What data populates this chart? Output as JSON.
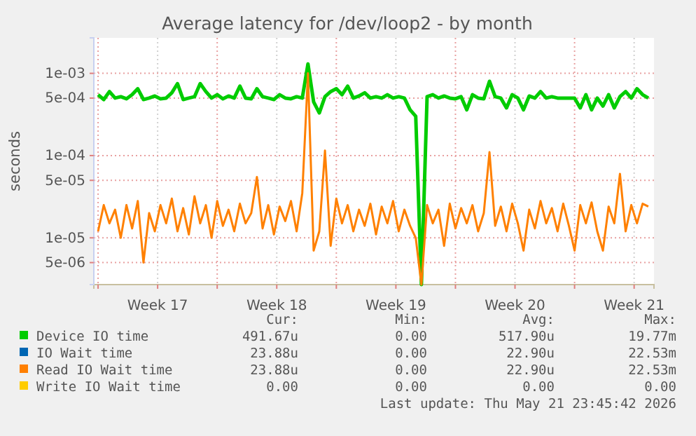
{
  "chart_data": {
    "type": "line",
    "title": "Average latency for /dev/loop2 - by month",
    "ylabel": "seconds",
    "log": "y",
    "grid": true,
    "legend": "bottom",
    "line_style": "solid",
    "xlim": [
      "2026-04-19T18:00",
      "2026-05-22T16:00"
    ],
    "ylim": [
      2.7e-06,
      0.0027
    ],
    "yticks": [
      {
        "value": 5e-06,
        "label": "5e-06"
      },
      {
        "value": 1e-05,
        "label": "1e-05"
      },
      {
        "value": 5e-05,
        "label": "5e-05"
      },
      {
        "value": 0.0001,
        "label": "1e-04"
      },
      {
        "value": 0.0005,
        "label": "5e-04"
      },
      {
        "value": 0.001,
        "label": "1e-03"
      }
    ],
    "xticks": [
      {
        "value": "2026-04-20",
        "label": null
      },
      {
        "value": "2026-04-23T12:00",
        "label": "Week 17"
      },
      {
        "value": "2026-04-27",
        "label": null
      },
      {
        "value": "2026-04-30T12:00",
        "label": "Week 18"
      },
      {
        "value": "2026-05-04",
        "label": null
      },
      {
        "value": "2026-05-07T12:00",
        "label": "Week 19"
      },
      {
        "value": "2026-05-11",
        "label": null
      },
      {
        "value": "2026-05-14T12:00",
        "label": "Week 20"
      },
      {
        "value": "2026-05-18",
        "label": null
      },
      {
        "value": "2026-05-21T12:00",
        "label": "Week 21"
      }
    ],
    "x": [
      "2026-04-20T00:00",
      "2026-04-20T08:00",
      "2026-04-20T16:00",
      "2026-04-21T00:00",
      "2026-04-21T08:00",
      "2026-04-21T16:00",
      "2026-04-22T00:00",
      "2026-04-22T08:00",
      "2026-04-22T16:00",
      "2026-04-23T00:00",
      "2026-04-23T08:00",
      "2026-04-23T16:00",
      "2026-04-24T00:00",
      "2026-04-24T08:00",
      "2026-04-24T16:00",
      "2026-04-25T00:00",
      "2026-04-25T08:00",
      "2026-04-25T16:00",
      "2026-04-26T00:00",
      "2026-04-26T08:00",
      "2026-04-26T16:00",
      "2026-04-27T00:00",
      "2026-04-27T08:00",
      "2026-04-27T16:00",
      "2026-04-28T00:00",
      "2026-04-28T08:00",
      "2026-04-28T16:00",
      "2026-04-29T00:00",
      "2026-04-29T08:00",
      "2026-04-29T16:00",
      "2026-04-30T00:00",
      "2026-04-30T08:00",
      "2026-04-30T16:00",
      "2026-05-01T00:00",
      "2026-05-01T08:00",
      "2026-05-01T16:00",
      "2026-05-02T00:00",
      "2026-05-02T08:00",
      "2026-05-02T16:00",
      "2026-05-03T00:00",
      "2026-05-03T08:00",
      "2026-05-03T16:00",
      "2026-05-04T00:00",
      "2026-05-04T08:00",
      "2026-05-04T16:00",
      "2026-05-05T00:00",
      "2026-05-05T08:00",
      "2026-05-05T16:00",
      "2026-05-06T00:00",
      "2026-05-06T08:00",
      "2026-05-06T16:00",
      "2026-05-07T00:00",
      "2026-05-07T08:00",
      "2026-05-07T16:00",
      "2026-05-08T00:00",
      "2026-05-08T08:00",
      "2026-05-08T16:00",
      "2026-05-09T00:00",
      "2026-05-09T08:00",
      "2026-05-09T16:00",
      "2026-05-10T00:00",
      "2026-05-10T08:00",
      "2026-05-10T16:00",
      "2026-05-11T00:00",
      "2026-05-11T08:00",
      "2026-05-11T16:00",
      "2026-05-12T00:00",
      "2026-05-12T08:00",
      "2026-05-12T16:00",
      "2026-05-13T00:00",
      "2026-05-13T08:00",
      "2026-05-13T16:00",
      "2026-05-14T00:00",
      "2026-05-14T08:00",
      "2026-05-14T16:00",
      "2026-05-15T00:00",
      "2026-05-15T08:00",
      "2026-05-15T16:00",
      "2026-05-16T00:00",
      "2026-05-16T08:00",
      "2026-05-16T16:00",
      "2026-05-17T00:00",
      "2026-05-17T08:00",
      "2026-05-17T16:00",
      "2026-05-18T00:00",
      "2026-05-18T08:00",
      "2026-05-18T16:00",
      "2026-05-19T00:00",
      "2026-05-19T08:00",
      "2026-05-19T16:00",
      "2026-05-20T00:00",
      "2026-05-20T08:00",
      "2026-05-20T16:00",
      "2026-05-21T00:00",
      "2026-05-21T08:00",
      "2026-05-21T16:00",
      "2026-05-22T00:00",
      "2026-05-22T08:00"
    ],
    "series": [
      {
        "name": "Device IO time",
        "color": "#00cc00",
        "values": [
          0.00055,
          0.00048,
          0.0006,
          0.0005,
          0.00052,
          0.00049,
          0.00055,
          0.00065,
          0.00048,
          0.0005,
          0.00053,
          0.00049,
          0.0005,
          0.00058,
          0.00075,
          0.00048,
          0.0005,
          0.00052,
          0.00075,
          0.0006,
          0.0005,
          0.00055,
          0.00049,
          0.00053,
          0.0005,
          0.0007,
          0.0005,
          0.00049,
          0.00065,
          0.00052,
          0.0005,
          0.00048,
          0.00055,
          0.0005,
          0.00049,
          0.00052,
          0.0005,
          0.0013,
          0.00045,
          0.00033,
          0.00052,
          0.0006,
          0.00065,
          0.00055,
          0.0007,
          0.0005,
          0.00053,
          0.00058,
          0.0005,
          0.00052,
          0.0005,
          0.00055,
          0.0005,
          0.00052,
          0.0005,
          0.00036,
          0.0003,
          2.7e-06,
          0.00052,
          0.00055,
          0.0005,
          0.00053,
          0.0005,
          0.00049,
          0.00052,
          0.00036,
          0.00055,
          0.0005,
          0.00049,
          0.0008,
          0.00052,
          0.0005,
          0.00038,
          0.00055,
          0.0005,
          0.00036,
          0.00053,
          0.0005,
          0.0006,
          0.0005,
          0.00052,
          0.0005,
          0.0005,
          0.0005,
          0.0005,
          0.00038,
          0.00055,
          0.00036,
          0.0005,
          0.0004,
          0.00055,
          0.00038,
          0.00052,
          0.0006,
          0.0005,
          0.00065,
          0.00055,
          0.0005
        ]
      },
      {
        "name": "IO Wait time",
        "color": "#0066b3",
        "values": [
          null,
          null,
          null,
          null,
          null,
          null,
          null,
          null,
          null,
          null,
          null,
          null,
          null,
          null,
          null,
          null,
          null,
          null,
          null,
          null,
          null,
          null,
          null,
          null,
          null,
          null,
          null,
          null,
          null,
          null,
          null,
          null,
          null,
          null,
          null,
          null,
          null,
          null,
          null,
          null,
          null,
          null,
          null,
          null,
          null,
          null,
          null,
          null,
          null,
          null,
          null,
          null,
          null,
          null,
          null,
          null,
          null,
          null,
          null,
          null,
          null,
          null,
          null,
          null,
          null,
          null,
          null,
          null,
          null,
          null,
          null,
          null,
          null,
          null,
          null,
          null,
          null,
          null,
          null,
          null,
          null,
          null,
          null,
          null,
          null,
          null,
          null,
          null,
          null,
          null,
          null,
          null,
          null,
          null,
          null,
          null,
          null,
          null
        ]
      },
      {
        "name": "Read IO Wait time",
        "color": "#ff8000",
        "values": [
          1.2e-05,
          2.5e-05,
          1.5e-05,
          2.2e-05,
          1e-05,
          2.5e-05,
          1.3e-05,
          2.8e-05,
          5e-06,
          2e-05,
          1.2e-05,
          2.5e-05,
          1.5e-05,
          3e-05,
          1.2e-05,
          2.3e-05,
          1.1e-05,
          3.2e-05,
          1.5e-05,
          2.5e-05,
          1e-05,
          2.8e-05,
          1.4e-05,
          2.2e-05,
          1.2e-05,
          2.6e-05,
          1.5e-05,
          2e-05,
          5.5e-05,
          1.3e-05,
          2.5e-05,
          1.1e-05,
          2.4e-05,
          1.6e-05,
          2.8e-05,
          1.2e-05,
          3.5e-05,
          0.001,
          7e-06,
          1.2e-05,
          0.000115,
          8e-06,
          3e-05,
          1.5e-05,
          2.5e-05,
          1.2e-05,
          2.2e-05,
          1.4e-05,
          2.6e-05,
          1.1e-05,
          2.4e-05,
          1.5e-05,
          2.8e-05,
          1.2e-05,
          2.2e-05,
          1.4e-05,
          1e-05,
          2.7e-06,
          2.5e-05,
          1.5e-05,
          2.2e-05,
          8e-06,
          2.6e-05,
          1.3e-05,
          2.3e-05,
          1.5e-05,
          2.5e-05,
          1.2e-05,
          2e-05,
          0.00011,
          1.4e-05,
          2.4e-05,
          1.2e-05,
          2.6e-05,
          1.5e-05,
          7e-06,
          2.2e-05,
          1.3e-05,
          2.8e-05,
          1.5e-05,
          2.3e-05,
          1.2e-05,
          2.6e-05,
          1.4e-05,
          7e-06,
          2.5e-05,
          1.5e-05,
          2.7e-05,
          1.2e-05,
          7e-06,
          2.4e-05,
          1.5e-05,
          6e-05,
          1.2e-05,
          2.5e-05,
          1.5e-05,
          2.6e-05,
          2.4e-05
        ]
      },
      {
        "name": "Write IO Wait time",
        "color": "#ffcc00",
        "values": [
          null,
          null,
          null,
          null,
          null,
          null,
          null,
          null,
          null,
          null,
          null,
          null,
          null,
          null,
          null,
          null,
          null,
          null,
          null,
          null,
          null,
          null,
          null,
          null,
          null,
          null,
          null,
          null,
          null,
          null,
          null,
          null,
          null,
          null,
          null,
          null,
          null,
          null,
          null,
          null,
          null,
          null,
          null,
          null,
          null,
          null,
          null,
          null,
          null,
          null,
          null,
          null,
          null,
          null,
          null,
          null,
          null,
          null,
          null,
          null,
          null,
          null,
          null,
          null,
          null,
          null,
          null,
          null,
          null,
          null,
          null,
          null,
          null,
          null,
          null,
          null,
          null,
          null,
          null,
          null,
          null,
          null,
          null,
          null,
          null,
          null,
          null,
          null,
          null,
          null,
          null,
          null,
          null,
          null,
          null,
          null,
          null,
          null
        ]
      }
    ],
    "annotations": [
      "Cur:",
      "Min:",
      "Avg:",
      "Max:",
      "491.67u",
      "0.00",
      "517.90u",
      "19.77m",
      "23.88u",
      "0.00",
      "22.90u",
      "22.53m",
      "23.88u",
      "0.00",
      "22.90u",
      "22.53m",
      "0.00",
      "0.00",
      "0.00",
      "0.00",
      "Last update: Thu May 21 23:45:42 2026"
    ]
  }
}
